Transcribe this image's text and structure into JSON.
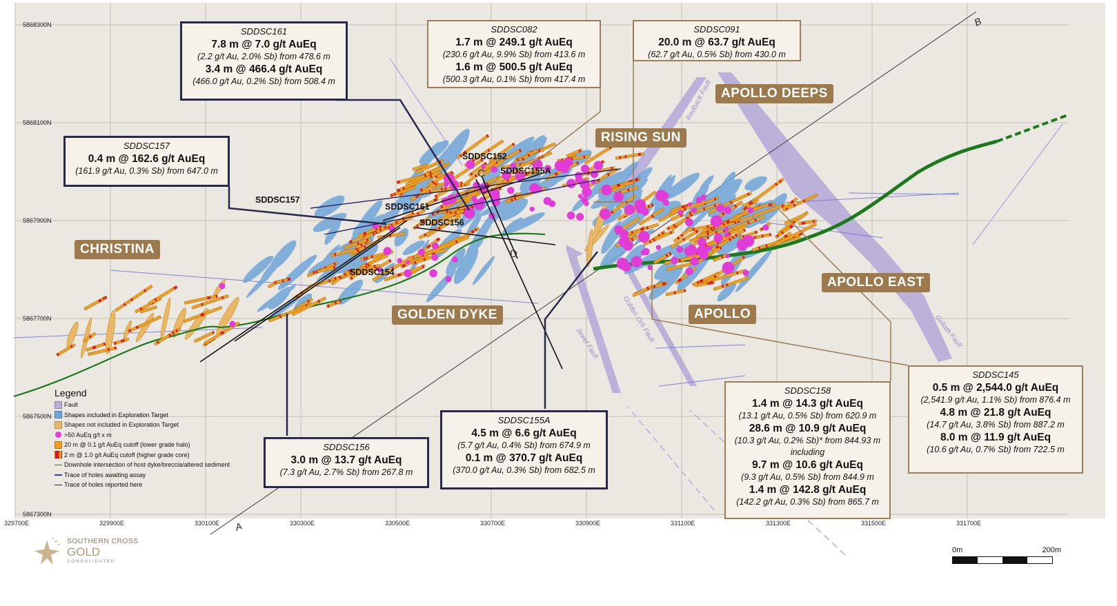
{
  "map": {
    "northing_labels": [
      "5868300N",
      "5868100N",
      "5867900N",
      "5867700N",
      "5867500N",
      "5867300N"
    ],
    "easting_labels": [
      "329700E",
      "329900E",
      "330100E",
      "330300E",
      "330500E",
      "330700E",
      "330900E",
      "331100E",
      "331300E",
      "331500E",
      "331700E"
    ],
    "section_labels": {
      "a": "A",
      "b": "B",
      "c": "C",
      "d": "D"
    },
    "hole_labels": [
      "SDDSC152",
      "SDDSC155A",
      "SDDSC157",
      "SDDSC161",
      "SDDSC156",
      "SDDSC154"
    ],
    "fault_labels": [
      "Redback Fault",
      "Golden Orb Fault",
      "Jewel Fault",
      "Goliath Fault"
    ],
    "regions": {
      "christina": "CHRISTINA",
      "golden_dyke": "GOLDEN DYKE",
      "rising_sun": "RISING SUN",
      "apollo_deeps": "APOLLO DEEPS",
      "apollo": "APOLLO",
      "apollo_east": "APOLLO EAST"
    }
  },
  "callouts": {
    "sddsc161": {
      "hole": "SDDSC161",
      "lines": [
        "7.8 m @ 7.0 g/t AuEq",
        "(2.2 g/t Au, 2.0% Sb) from 478.6 m",
        "3.4 m @ 466.4 g/t AuEq",
        "(466.0 g/t Au, 0.2% Sb) from 508.4 m"
      ]
    },
    "sddsc082": {
      "hole": "SDDSC082",
      "lines": [
        "1.7 m @ 249.1 g/t AuEq",
        "(230.6 g/t Au, 9.9% Sb) from 413.6 m",
        "1.6 m @ 500.5 g/t AuEq",
        "(500.3 g/t Au, 0.1% Sb) from 417.4 m"
      ]
    },
    "sddsc091": {
      "hole": "SDDSC091",
      "lines": [
        "20.0 m @ 63.7 g/t AuEq",
        "(62.7 g/t Au, 0.5% Sb) from 430.0 m"
      ]
    },
    "sddsc157": {
      "hole": "SDDSC157",
      "lines": [
        "0.4 m @ 162.6 g/t AuEq",
        "(161.9 g/t Au, 0.3% Sb) from 647.0 m"
      ]
    },
    "sddsc156": {
      "hole": "SDDSC156",
      "lines": [
        "3.0 m @ 13.7 g/t AuEq",
        "(7.3 g/t Au, 2.7% Sb) from 267.8 m"
      ]
    },
    "sddsc155a": {
      "hole": "SDDSC155A",
      "lines": [
        "4.5 m @ 6.6 g/t AuEq",
        "(5.7 g/t Au, 0.4% Sb) from 674.9 m",
        "0.1 m @ 370.7 g/t AuEq",
        "(370.0 g/t Au, 0.3% Sb) from 682.5 m"
      ]
    },
    "sddsc158": {
      "hole": "SDDSC158",
      "lines": [
        "1.4 m @ 14.3 g/t AuEq",
        "(13.1 g/t Au, 0.5% Sb) from 620.9 m",
        "28.6 m @ 10.9 g/t AuEq",
        "(10.3 g/t Au, 0.2% Sb)* from 844.93 m",
        "including",
        "9.7 m @ 10.6 g/t AuEq",
        "(9.3 g/t Au, 0.5% Sb) from 844.9 m",
        "1.4 m @ 142.8 g/t AuEq",
        "(142.2 g/t Au, 0.3% Sb) from 865.7 m"
      ]
    },
    "sddsc145": {
      "hole": "SDDSC145",
      "lines": [
        "0.5 m @ 2,544.0 g/t AuEq",
        "(2,541.9 g/t Au, 1.1% Sb) from 876.4 m",
        "4.8 m @ 21.8 g/t AuEq",
        "(14.7 g/t Au, 3.8% Sb) from 887.2 m",
        "8.0 m @ 11.9 g/t AuEq",
        "(10.6 g/t Au, 0.7% Sb) from 722.5 m"
      ]
    }
  },
  "legend": {
    "title": "Legend",
    "items": [
      {
        "label": "Fault",
        "color": "#b8aed8",
        "kind": "box"
      },
      {
        "label": "Shapes included in Exploration Target",
        "color": "#6fa6d9",
        "kind": "box"
      },
      {
        "label": "Shapes not included in Exploration Target",
        "color": "#e9b866",
        "kind": "box"
      },
      {
        "label": ">50 AuEq g/t x m",
        "color": "#e23cd8",
        "kind": "dot"
      },
      {
        "label": "20 m @ 0.1 g/t AuEq cutoff (lower grade halo)",
        "color": "#f0a020",
        "kind": "box"
      },
      {
        "label": "2 m @ 1.0 g/t AuEq cutoff (higher grade core)",
        "color": "#e01818",
        "kind": "box"
      },
      {
        "label": "Downhole intersection of host dyke/breccia/altered sediment",
        "color": "#1c7a1c",
        "kind": "line"
      },
      {
        "label": "Trace of holes awaiting assay",
        "color": "#3838a8",
        "kind": "line"
      },
      {
        "label": "Trace of holes reported here",
        "color": "#222222",
        "kind": "line"
      }
    ]
  },
  "logo": {
    "line1": "SOUTHERN CROSS",
    "line2": "GOLD",
    "line3": "CONSOLIDATED"
  },
  "scale": {
    "start": "0m",
    "end": "200m"
  },
  "colors": {
    "background": "#ebe7e1",
    "grid": "#c4c0b8",
    "fault": "#b8aed8",
    "dyke": "#1c7a1c",
    "navy_border": "#28284a",
    "tan_border": "#9a7c56",
    "region_fill": "#9c7a4e",
    "magenta": "#e23cd8",
    "blue_shape": "#6fa6d9",
    "orange_shape": "#e9b866"
  }
}
